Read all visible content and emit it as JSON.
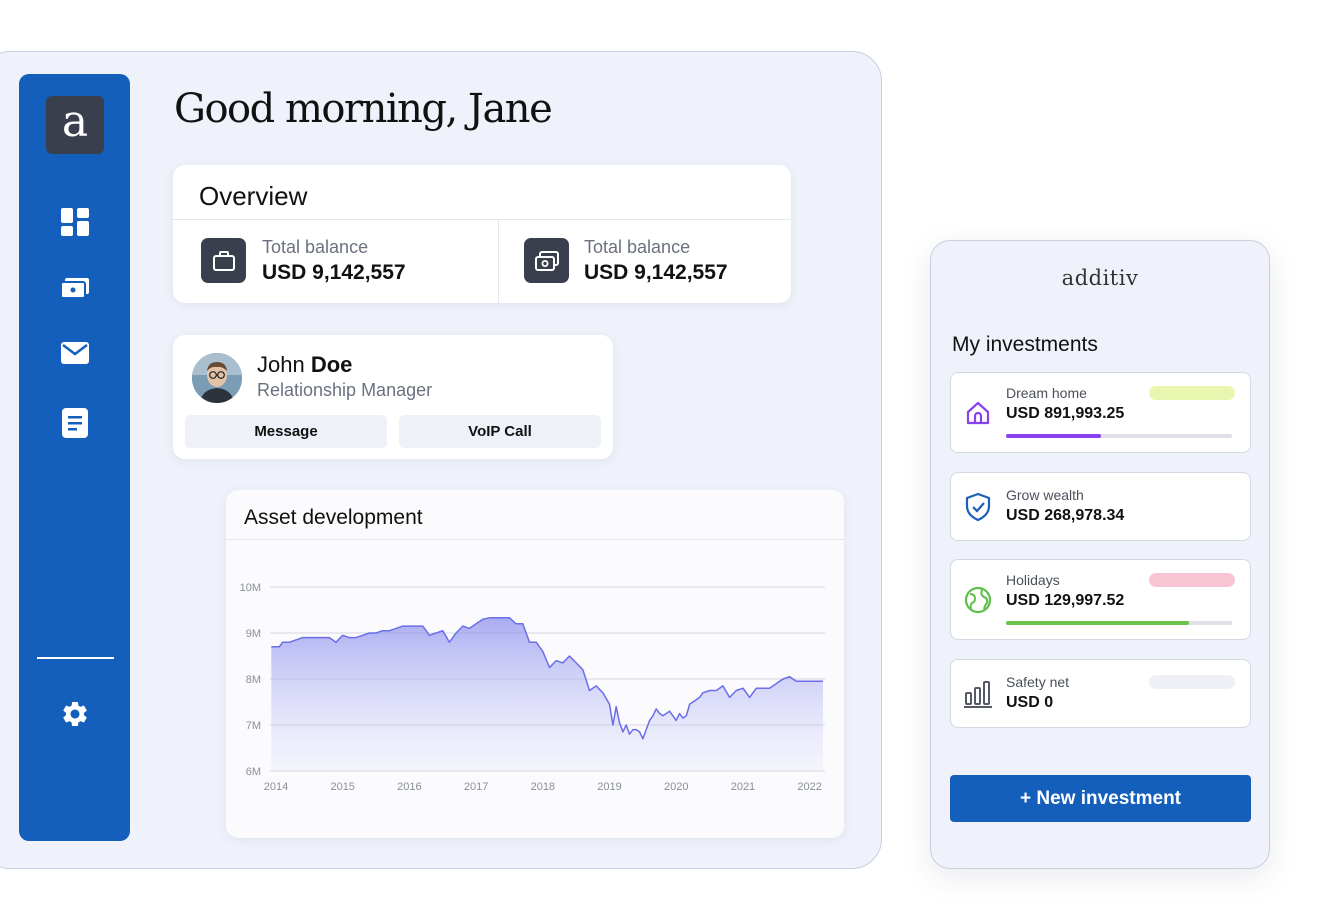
{
  "greeting": "Good morning, Jane",
  "sidebar": {
    "logo": "a",
    "items": [
      {
        "icon": "dashboard-icon"
      },
      {
        "icon": "wallet-icon"
      },
      {
        "icon": "mail-icon"
      },
      {
        "icon": "document-icon"
      }
    ],
    "settings_icon": "gear-icon"
  },
  "overview": {
    "title": "Overview",
    "items": [
      {
        "icon": "briefcase-icon",
        "label": "Total balance",
        "value": "USD 9,142,557"
      },
      {
        "icon": "money-icon",
        "label": "Total balance",
        "value": "USD 9,142,557"
      }
    ]
  },
  "relationship_manager": {
    "first_name": "John",
    "last_name": "Doe",
    "role": "Relationship Manager",
    "message_label": "Message",
    "voip_label": "VoIP Call"
  },
  "asset_development": {
    "title": "Asset development"
  },
  "chart_data": {
    "type": "area",
    "title": "Asset development",
    "xlabel": "",
    "ylabel": "",
    "x_ticks": [
      "2014",
      "2015",
      "2016",
      "2017",
      "2018",
      "2019",
      "2020",
      "2021",
      "2022"
    ],
    "y_ticks": [
      "6M",
      "7M",
      "8M",
      "9M",
      "10M"
    ],
    "ylim": [
      6,
      10
    ],
    "xlim": [
      2014,
      2022.2
    ],
    "grid": true,
    "color": "#6a6ee8",
    "series": [
      {
        "x": [
          2013.93,
          2014.05,
          2014.1,
          2014.2,
          2014.3,
          2014.4,
          2014.6,
          2014.8,
          2014.9,
          2015.0,
          2015.1,
          2015.2,
          2015.3,
          2015.4,
          2015.5,
          2015.6,
          2015.7,
          2015.8,
          2015.9,
          2016.0,
          2016.1,
          2016.2,
          2016.3,
          2016.4,
          2016.5,
          2016.6,
          2016.7,
          2016.8,
          2016.9,
          2017.0,
          2017.1,
          2017.2,
          2017.3,
          2017.4,
          2017.5,
          2017.6,
          2017.7,
          2017.8,
          2017.9,
          2018.0,
          2018.1,
          2018.2,
          2018.3,
          2018.4,
          2018.5,
          2018.6,
          2018.7,
          2018.8,
          2018.9,
          2019.0,
          2019.05,
          2019.1,
          2019.15,
          2019.2,
          2019.25,
          2019.3,
          2019.35,
          2019.4,
          2019.45,
          2019.5,
          2019.55,
          2019.6,
          2019.65,
          2019.7,
          2019.75,
          2019.8,
          2019.9,
          2020.0,
          2020.05,
          2020.1,
          2020.15,
          2020.2,
          2020.3,
          2020.35,
          2020.4,
          2020.5,
          2020.6,
          2020.7,
          2020.8,
          2020.9,
          2021.0,
          2021.1,
          2021.2,
          2021.3,
          2021.4,
          2021.5,
          2021.6,
          2021.7,
          2021.8,
          2021.9,
          2022.0,
          2022.1,
          2022.2
        ],
        "y": [
          8.7,
          8.7,
          8.8,
          8.8,
          8.85,
          8.9,
          8.9,
          8.9,
          8.8,
          8.95,
          8.9,
          8.9,
          8.95,
          9.0,
          9.0,
          9.05,
          9.05,
          9.1,
          9.15,
          9.15,
          9.15,
          9.15,
          8.95,
          9.0,
          9.05,
          8.8,
          9.0,
          9.15,
          9.1,
          9.2,
          9.3,
          9.33,
          9.33,
          9.33,
          9.33,
          9.2,
          9.2,
          8.8,
          8.8,
          8.6,
          8.25,
          8.4,
          8.35,
          8.5,
          8.35,
          8.2,
          7.75,
          7.85,
          7.7,
          7.45,
          7.0,
          7.4,
          7.05,
          6.85,
          7.0,
          6.8,
          6.9,
          6.9,
          6.85,
          6.7,
          6.9,
          7.1,
          7.2,
          7.35,
          7.25,
          7.2,
          7.3,
          7.1,
          7.25,
          7.15,
          7.2,
          7.45,
          7.55,
          7.6,
          7.7,
          7.75,
          7.75,
          7.85,
          7.6,
          7.75,
          7.8,
          7.6,
          7.8,
          7.8,
          7.8,
          7.9,
          8.0,
          8.05,
          7.95,
          7.95,
          7.95,
          7.95,
          7.95
        ]
      }
    ]
  },
  "investments_panel": {
    "brand": "additiv",
    "title": "My investments",
    "items": [
      {
        "icon": "house-icon",
        "icon_color": "#8a3ff0",
        "name": "Dream home",
        "value": "USD 891,993.25",
        "tag_color": "#e9f6b0",
        "progress": 0.42,
        "progress_color": "#8a3ff0"
      },
      {
        "icon": "shield-check-icon",
        "icon_color": "#1b5fb8",
        "name": "Grow wealth",
        "value": "USD 268,978.34",
        "tag_color": null,
        "progress": null,
        "progress_color": null
      },
      {
        "icon": "globe-icon",
        "icon_color": "#5fbf4a",
        "name": "Holidays",
        "value": "USD 129,997.52",
        "tag_color": "#f9c5d5",
        "progress": 0.81,
        "progress_color": "#6cc34e"
      },
      {
        "icon": "bar-chart-icon",
        "icon_color": "#555a66",
        "name": "Safety net",
        "value": "USD 0",
        "tag_color": "#eef0f6",
        "progress": null,
        "progress_color": null
      }
    ],
    "new_button": "+ New investment"
  }
}
